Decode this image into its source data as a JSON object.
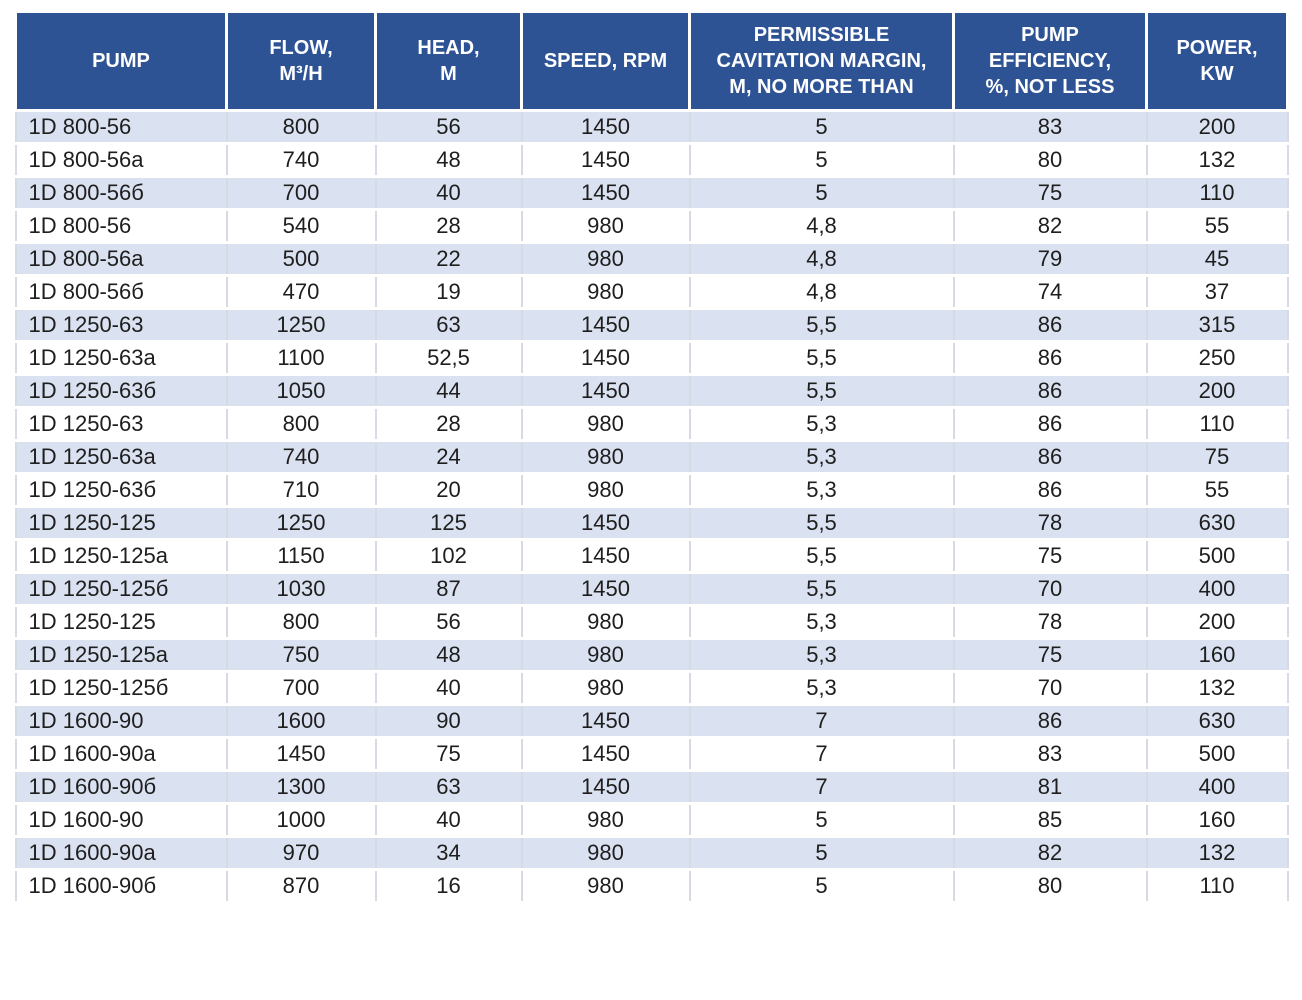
{
  "colors": {
    "header_bg": "#2E5395",
    "header_text": "#FFFFFF",
    "row_bg": "#FFFFFF",
    "row_alt_bg": "#DAE1F0",
    "grid_line": "#D6DAE3",
    "body_text": "#1E1E1E"
  },
  "chart_data": {
    "type": "table",
    "columns": [
      "PUMP",
      "FLOW,\nM³/H",
      "HEAD,\nM",
      "SPEED, RPM",
      "PERMISSIBLE\nCAVITATION MARGIN,\nM, NO MORE THAN",
      "PUMP\nEFFICIENCY,\n%, NOT LESS",
      "POWER,\nKW"
    ],
    "rows": [
      [
        "1D 800-56",
        "800",
        "56",
        "1450",
        "5",
        "83",
        "200"
      ],
      [
        "1D 800-56a",
        "740",
        "48",
        "1450",
        "5",
        "80",
        "132"
      ],
      [
        "1D 800-56б",
        "700",
        "40",
        "1450",
        "5",
        "75",
        "110"
      ],
      [
        "1D 800-56",
        "540",
        "28",
        "980",
        "4,8",
        "82",
        "55"
      ],
      [
        "1D 800-56a",
        "500",
        "22",
        "980",
        "4,8",
        "79",
        "45"
      ],
      [
        "1D 800-56б",
        "470",
        "19",
        "980",
        "4,8",
        "74",
        "37"
      ],
      [
        "1D 1250-63",
        "1250",
        "63",
        "1450",
        "5,5",
        "86",
        "315"
      ],
      [
        "1D 1250-63a",
        "1100",
        "52,5",
        "1450",
        "5,5",
        "86",
        "250"
      ],
      [
        "1D 1250-63б",
        "1050",
        "44",
        "1450",
        "5,5",
        "86",
        "200"
      ],
      [
        "1D 1250-63",
        "800",
        "28",
        "980",
        "5,3",
        "86",
        "110"
      ],
      [
        "1D 1250-63a",
        "740",
        "24",
        "980",
        "5,3",
        "86",
        "75"
      ],
      [
        "1D 1250-63б",
        "710",
        "20",
        "980",
        "5,3",
        "86",
        "55"
      ],
      [
        "1D 1250-125",
        "1250",
        "125",
        "1450",
        "5,5",
        "78",
        "630"
      ],
      [
        "1D 1250-125a",
        "1150",
        "102",
        "1450",
        "5,5",
        "75",
        "500"
      ],
      [
        "1D 1250-125б",
        "1030",
        "87",
        "1450",
        "5,5",
        "70",
        "400"
      ],
      [
        "1D 1250-125",
        "800",
        "56",
        "980",
        "5,3",
        "78",
        "200"
      ],
      [
        "1D 1250-125a",
        "750",
        "48",
        "980",
        "5,3",
        "75",
        "160"
      ],
      [
        "1D 1250-125б",
        "700",
        "40",
        "980",
        "5,3",
        "70",
        "132"
      ],
      [
        "1D 1600-90",
        "1600",
        "90",
        "1450",
        "7",
        "86",
        "630"
      ],
      [
        "1D 1600-90a",
        "1450",
        "75",
        "1450",
        "7",
        "83",
        "500"
      ],
      [
        "1D 1600-90б",
        "1300",
        "63",
        "1450",
        "7",
        "81",
        "400"
      ],
      [
        "1D 1600-90",
        "1000",
        "40",
        "980",
        "5",
        "85",
        "160"
      ],
      [
        "1D 1600-90a",
        "970",
        "34",
        "980",
        "5",
        "82",
        "132"
      ],
      [
        "1D 1600-90б",
        "870",
        "16",
        "980",
        "5",
        "80",
        "110"
      ]
    ]
  }
}
